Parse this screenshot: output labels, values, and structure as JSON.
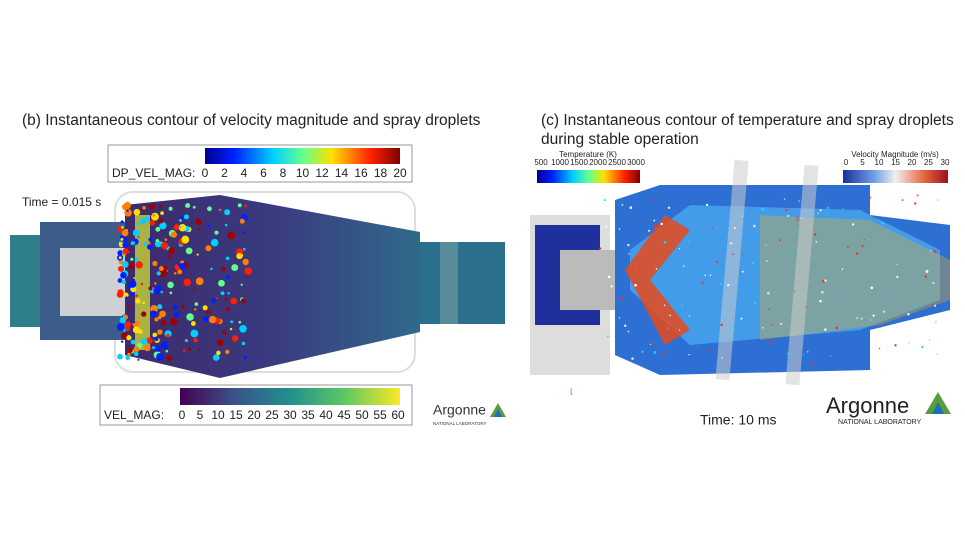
{
  "left": {
    "title": "(b) Instantaneous contour of velocity magnitude and spray droplets",
    "time": "Time = 0.015 s",
    "droplet_colorbar": {
      "label": "DP_VEL_MAG:",
      "ticks": [
        0,
        2,
        4,
        6,
        8,
        10,
        12,
        14,
        16,
        18,
        20
      ]
    },
    "velocity_colorbar": {
      "label": "VEL_MAG:",
      "ticks": [
        0,
        5,
        10,
        15,
        20,
        25,
        30,
        35,
        40,
        45,
        50,
        55,
        60
      ]
    },
    "logo": {
      "name": "Argonne",
      "subtitle": "NATIONAL LABORATORY"
    }
  },
  "right": {
    "title": "(c) Instantaneous contour of temperature and spray droplets during stable operation",
    "temperature_colorbar": {
      "label": "Temperature (K)",
      "ticks": [
        500,
        1000,
        1500,
        2000,
        2500,
        3000
      ]
    },
    "velocity_colorbar": {
      "label": "Velocity Magnitude (m/s)",
      "ticks": [
        0,
        5,
        10,
        15,
        20,
        25,
        30
      ]
    },
    "time": "Time: 10 ms",
    "logo": {
      "name": "Argonne",
      "subtitle": "NATIONAL LABORATORY"
    }
  }
}
